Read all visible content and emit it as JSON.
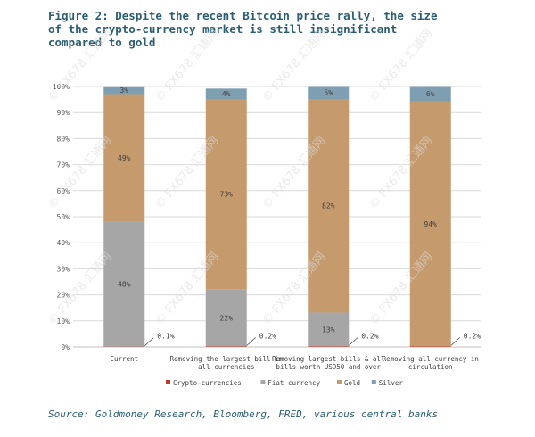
{
  "title_lines": [
    "Figure 2: Despite the recent Bitcoin price rally, the size",
    "of the crypto-currency market is still insignificant",
    "compared to gold"
  ],
  "source": "Source: Goldmoney Research, Bloomberg, FRED, various central banks",
  "watermark_text": "FX678 汇通网",
  "colors": {
    "title": "#2b5e73",
    "crypto": "#c0392b",
    "fiat": "#a6a6a6",
    "gold": "#c59a6d",
    "silver": "#7e9fb2"
  },
  "chart_data": {
    "type": "bar",
    "stacked": true,
    "title": "Figure 2: Despite the recent Bitcoin price rally, the size of the crypto-currency market is still insignificant compared to gold",
    "categories": [
      [
        "Current"
      ],
      [
        "Removing the largest bill in",
        "all currencies"
      ],
      [
        "Removing largest bills & all",
        "bills worth USD50 and over"
      ],
      [
        "Removing all currency in",
        "circulation"
      ]
    ],
    "series": [
      {
        "name": "Crypto-currencies",
        "values": [
          0.1,
          0.2,
          0.2,
          0.2
        ],
        "labels": [
          "0.1%",
          "0.2%",
          "0.2%",
          "0.2%"
        ]
      },
      {
        "name": "Fiat currency",
        "values": [
          48,
          22,
          13,
          0
        ],
        "labels": [
          "48%",
          "22%",
          "13%",
          ""
        ]
      },
      {
        "name": "Gold",
        "values": [
          49,
          73,
          82,
          94
        ],
        "labels": [
          "49%",
          "73%",
          "82%",
          "94%"
        ]
      },
      {
        "name": "Silver",
        "values": [
          3,
          4,
          5,
          6
        ],
        "labels": [
          "3%",
          "4%",
          "5%",
          "6%"
        ]
      }
    ],
    "y_ticks": [
      "0%",
      "10%",
      "20%",
      "30%",
      "40%",
      "50%",
      "60%",
      "70%",
      "80%",
      "90%",
      "100%"
    ],
    "ylim": [
      0,
      100
    ],
    "grid": true,
    "legend_position": "bottom",
    "xlabel": "",
    "ylabel": ""
  }
}
